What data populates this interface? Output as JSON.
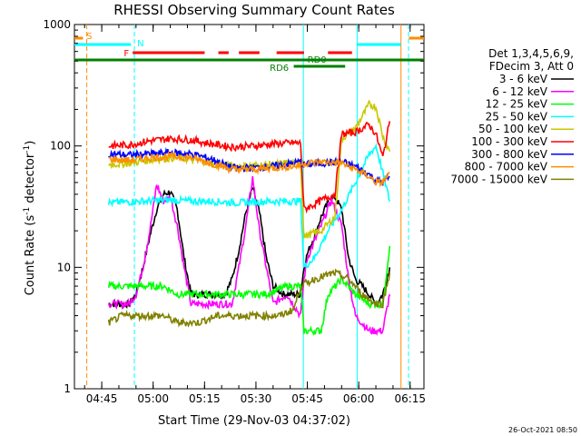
{
  "chart_data": {
    "type": "line",
    "title": "RHESSI Observing Summary Count Rates",
    "xlabel": "Start Time (29-Nov-03 04:37:02)",
    "ylabel_main": "Count Rate (s",
    "ylabel_sup": "-1",
    "ylabel_rest": " detector",
    "ylabel_end": ")",
    "yscale": "log",
    "ylim": [
      1,
      1000
    ],
    "xlim_minutes": [
      0,
      102
    ],
    "x_tick_labels": [
      "04:45",
      "05:00",
      "05:15",
      "05:30",
      "05:45",
      "06:00",
      "06:15"
    ],
    "x_tick_minutes": [
      7.97,
      22.97,
      37.97,
      52.97,
      67.97,
      82.97,
      97.97
    ],
    "y_tick_labels": [
      "1",
      "10",
      "100",
      "1000"
    ],
    "y_tick_values": [
      1,
      10,
      100,
      1000
    ],
    "grid": false,
    "legend_position": "right",
    "legend_header": [
      "Det 1,3,4,5,6,9,",
      "FDecim 3, Att 0"
    ],
    "footer_date": "26-Oct-2021 08:50",
    "colors": {
      "3-6": "#000000",
      "6-12": "#ff00ff",
      "12-25": "#00ff00",
      "25-50": "#00ffff",
      "50-100": "#c8c800",
      "100-300": "#ff0000",
      "300-800": "#0000ff",
      "800-7000": "#ff8c00",
      "7000-15000": "#808000"
    },
    "series": [
      {
        "name": "3 - 6 keV",
        "color": "#000000",
        "points": [
          [
            10,
            5
          ],
          [
            16,
            5
          ],
          [
            18,
            6
          ],
          [
            20,
            10
          ],
          [
            22,
            18
          ],
          [
            24,
            30
          ],
          [
            26,
            40
          ],
          [
            28,
            42
          ],
          [
            30,
            30
          ],
          [
            32,
            12
          ],
          [
            34,
            6
          ],
          [
            40,
            6
          ],
          [
            44,
            6
          ],
          [
            46,
            8
          ],
          [
            48,
            14
          ],
          [
            50,
            28
          ],
          [
            52,
            45
          ],
          [
            54,
            28
          ],
          [
            56,
            12
          ],
          [
            58,
            7
          ],
          [
            61,
            6
          ],
          [
            66,
            6
          ],
          [
            67,
            10
          ],
          [
            68,
            13
          ],
          [
            70,
            18
          ],
          [
            72,
            26
          ],
          [
            74,
            34
          ],
          [
            76,
            38
          ],
          [
            78,
            30
          ],
          [
            80,
            12
          ],
          [
            82,
            8
          ],
          [
            84,
            7
          ],
          [
            86,
            6
          ],
          [
            88,
            5
          ],
          [
            90,
            6
          ],
          [
            92,
            10
          ]
        ]
      },
      {
        "name": "6 - 12 keV",
        "color": "#ff00ff",
        "points": [
          [
            10,
            5
          ],
          [
            16,
            5
          ],
          [
            18,
            6
          ],
          [
            20,
            10
          ],
          [
            22,
            20
          ],
          [
            24,
            48
          ],
          [
            26,
            35
          ],
          [
            28,
            38
          ],
          [
            30,
            22
          ],
          [
            32,
            10
          ],
          [
            34,
            5
          ],
          [
            40,
            5
          ],
          [
            46,
            5
          ],
          [
            48,
            10
          ],
          [
            50,
            22
          ],
          [
            52,
            55
          ],
          [
            54,
            20
          ],
          [
            56,
            10
          ],
          [
            58,
            5
          ],
          [
            62,
            6
          ],
          [
            66,
            4
          ],
          [
            67,
            8
          ],
          [
            68,
            12
          ],
          [
            72,
            22
          ],
          [
            75,
            36
          ],
          [
            78,
            22
          ],
          [
            80,
            8
          ],
          [
            82,
            4
          ],
          [
            86,
            3
          ],
          [
            90,
            3
          ],
          [
            92,
            6
          ]
        ]
      },
      {
        "name": "12 - 25 keV",
        "color": "#00ff00",
        "points": [
          [
            10,
            7
          ],
          [
            20,
            7
          ],
          [
            26,
            7
          ],
          [
            30,
            6
          ],
          [
            36,
            6
          ],
          [
            44,
            6
          ],
          [
            50,
            6
          ],
          [
            56,
            6
          ],
          [
            62,
            7
          ],
          [
            66,
            7
          ],
          [
            67,
            3
          ],
          [
            72,
            3
          ],
          [
            74,
            6
          ],
          [
            78,
            8
          ],
          [
            82,
            6
          ],
          [
            86,
            5
          ],
          [
            90,
            5
          ],
          [
            92,
            15
          ]
        ]
      },
      {
        "name": "25 - 50 keV",
        "color": "#00ffff",
        "points": [
          [
            10,
            34
          ],
          [
            20,
            35
          ],
          [
            28,
            36
          ],
          [
            34,
            35
          ],
          [
            40,
            35
          ],
          [
            48,
            34
          ],
          [
            56,
            35
          ],
          [
            62,
            35
          ],
          [
            66,
            35
          ],
          [
            67,
            10
          ],
          [
            70,
            12
          ],
          [
            74,
            20
          ],
          [
            78,
            30
          ],
          [
            82,
            50
          ],
          [
            86,
            85
          ],
          [
            88,
            100
          ],
          [
            90,
            60
          ],
          [
            92,
            35
          ]
        ]
      },
      {
        "name": "50 - 100 keV",
        "color": "#c8c800",
        "points": [
          [
            10,
            70
          ],
          [
            16,
            72
          ],
          [
            24,
            78
          ],
          [
            30,
            80
          ],
          [
            36,
            76
          ],
          [
            42,
            70
          ],
          [
            48,
            68
          ],
          [
            56,
            70
          ],
          [
            62,
            72
          ],
          [
            66,
            72
          ],
          [
            67,
            18
          ],
          [
            72,
            20
          ],
          [
            76,
            26
          ],
          [
            78,
            115
          ],
          [
            82,
            140
          ],
          [
            86,
            220
          ],
          [
            88,
            210
          ],
          [
            90,
            120
          ],
          [
            92,
            90
          ]
        ]
      },
      {
        "name": "100 - 300 keV",
        "color": "#ff0000",
        "points": [
          [
            10,
            100
          ],
          [
            16,
            102
          ],
          [
            22,
            110
          ],
          [
            28,
            115
          ],
          [
            34,
            112
          ],
          [
            40,
            104
          ],
          [
            46,
            98
          ],
          [
            52,
            100
          ],
          [
            58,
            104
          ],
          [
            64,
            106
          ],
          [
            66,
            105
          ],
          [
            67,
            30
          ],
          [
            70,
            33
          ],
          [
            74,
            38
          ],
          [
            76,
            40
          ],
          [
            78,
            125
          ],
          [
            82,
            130
          ],
          [
            86,
            150
          ],
          [
            88,
            125
          ],
          [
            90,
            80
          ],
          [
            92,
            160
          ]
        ]
      },
      {
        "name": "300 - 800 keV",
        "color": "#0000ff",
        "points": [
          [
            10,
            86
          ],
          [
            16,
            84
          ],
          [
            22,
            86
          ],
          [
            28,
            88
          ],
          [
            34,
            86
          ],
          [
            40,
            78
          ],
          [
            46,
            66
          ],
          [
            52,
            66
          ],
          [
            58,
            68
          ],
          [
            64,
            72
          ],
          [
            66,
            74
          ],
          [
            67,
            70
          ],
          [
            72,
            72
          ],
          [
            78,
            74
          ],
          [
            82,
            68
          ],
          [
            86,
            58
          ],
          [
            88,
            52
          ],
          [
            90,
            50
          ],
          [
            92,
            56
          ]
        ]
      },
      {
        "name": "800 - 7000 keV",
        "color": "#ff8c00",
        "points": [
          [
            10,
            78
          ],
          [
            16,
            76
          ],
          [
            22,
            80
          ],
          [
            28,
            82
          ],
          [
            34,
            80
          ],
          [
            40,
            72
          ],
          [
            46,
            64
          ],
          [
            52,
            64
          ],
          [
            58,
            66
          ],
          [
            64,
            68
          ],
          [
            66,
            70
          ],
          [
            67,
            72
          ],
          [
            72,
            74
          ],
          [
            78,
            72
          ],
          [
            82,
            64
          ],
          [
            86,
            56
          ],
          [
            88,
            50
          ],
          [
            90,
            50
          ],
          [
            92,
            60
          ]
        ]
      },
      {
        "name": "7000 - 15000 keV",
        "color": "#808000",
        "points": [
          [
            10,
            3.5
          ],
          [
            14,
            4
          ],
          [
            20,
            4
          ],
          [
            26,
            4
          ],
          [
            30,
            3.5
          ],
          [
            36,
            3.5
          ],
          [
            42,
            4
          ],
          [
            48,
            4
          ],
          [
            54,
            4
          ],
          [
            60,
            4
          ],
          [
            64,
            4.5
          ],
          [
            66,
            7
          ],
          [
            70,
            8
          ],
          [
            76,
            9
          ],
          [
            80,
            8
          ],
          [
            84,
            6
          ],
          [
            88,
            5
          ],
          [
            90,
            5
          ],
          [
            92,
            9
          ]
        ]
      }
    ],
    "annotations": {
      "S": "S",
      "N": "N",
      "F": "F",
      "RD0": "RD0",
      "RD6": "RD6"
    },
    "vertical_markers": [
      {
        "minute": 3.6,
        "color": "#ff8c00",
        "style": "dashed"
      },
      {
        "minute": 17.5,
        "color": "#00ffff",
        "style": "dashed"
      },
      {
        "minute": 66.8,
        "color": "#00ffff",
        "style": "solid"
      },
      {
        "minute": 82.5,
        "color": "#00ffff",
        "style": "solid"
      },
      {
        "minute": 95.3,
        "color": "#ff8c00",
        "style": "solid"
      },
      {
        "minute": 97.5,
        "color": "#00ffff",
        "style": "dashed"
      }
    ]
  }
}
